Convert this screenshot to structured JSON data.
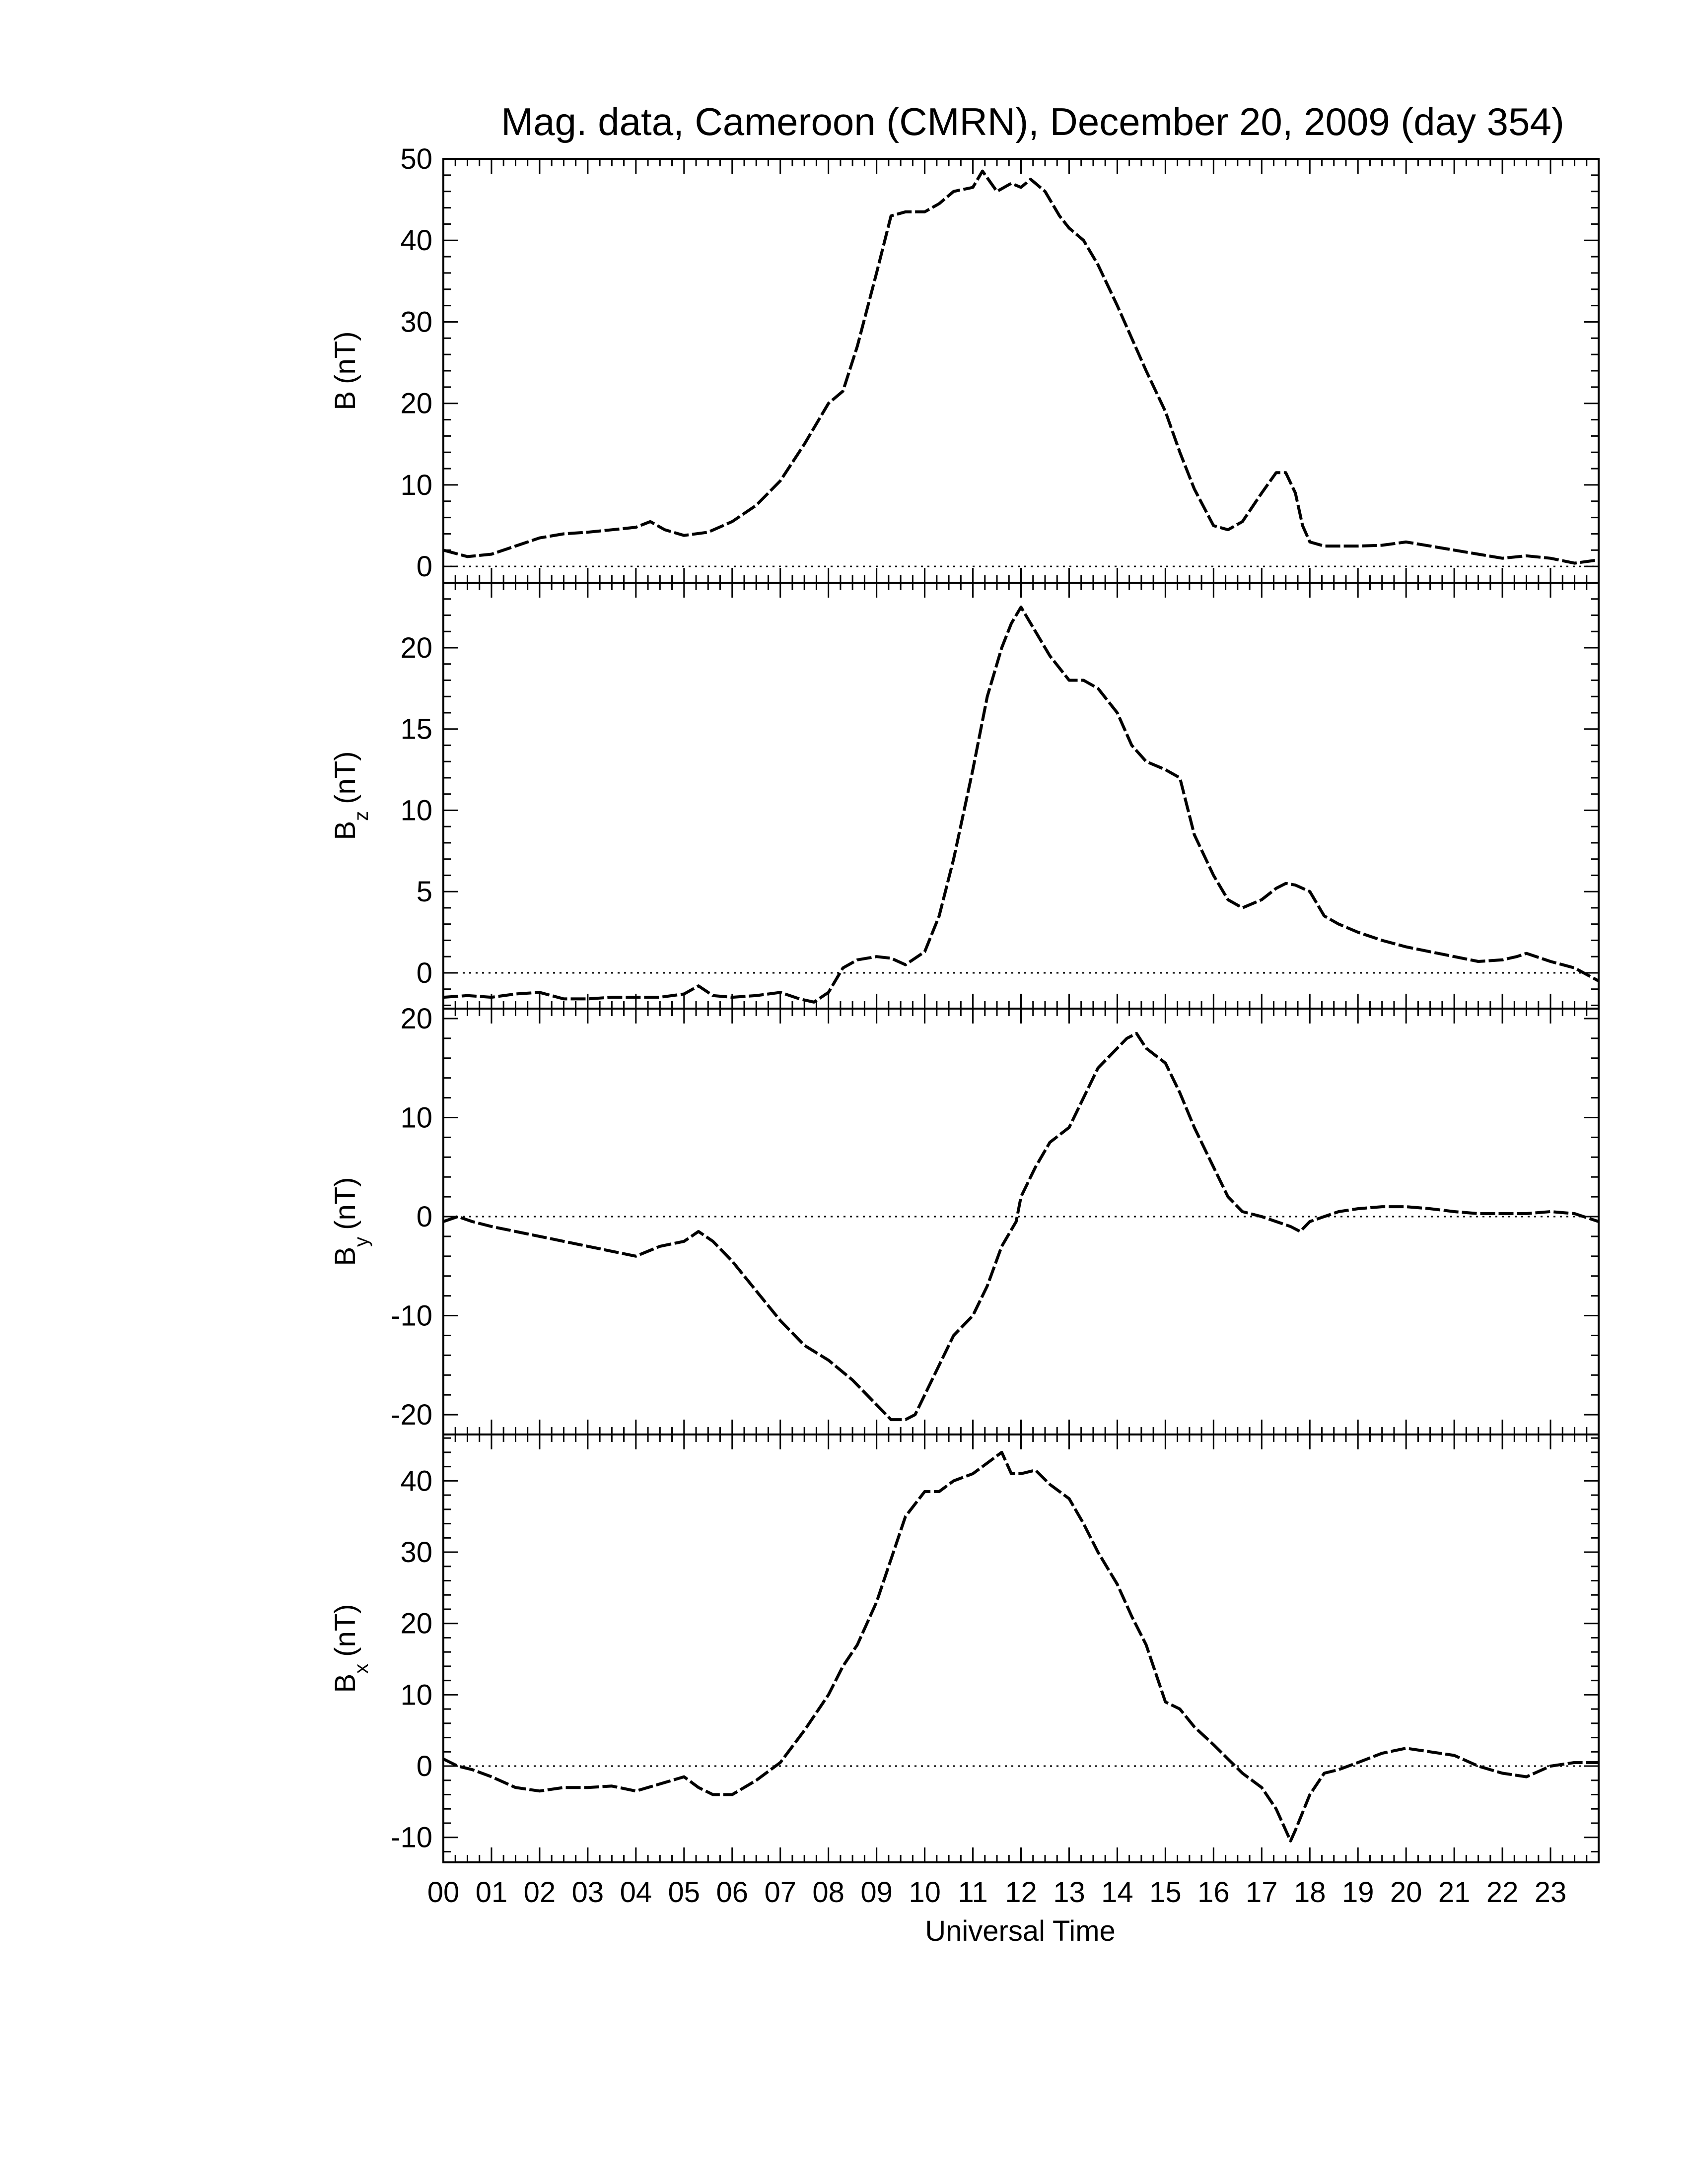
{
  "chart_data": {
    "type": "line",
    "title": "Mag. data, Cameroon (CMRN), December 20, 2009 (day 354)",
    "xlabel": "Universal Time",
    "xlim": [
      0,
      24
    ],
    "x_tick_labels": [
      "00",
      "01",
      "02",
      "03",
      "04",
      "05",
      "06",
      "07",
      "08",
      "09",
      "10",
      "11",
      "12",
      "13",
      "14",
      "15",
      "16",
      "17",
      "18",
      "19",
      "20",
      "21",
      "22",
      "23"
    ],
    "panels": [
      {
        "ylabel_main": "B",
        "ylabel_sub": "",
        "ylabel_unit": "(nT)",
        "ylim": [
          -2,
          50
        ],
        "yticks": [
          0,
          10,
          20,
          30,
          40,
          50
        ],
        "ytick_labels": [
          "0",
          "10",
          "20",
          "30",
          "40",
          "50"
        ],
        "series": [
          {
            "x": [
              0.0,
              0.5,
              1.0,
              1.5,
              2.0,
              2.5,
              3.0,
              3.5,
              4.0,
              4.3,
              4.6,
              5.0,
              5.5,
              6.0,
              6.5,
              7.0,
              7.5,
              8.0,
              8.3,
              8.6,
              9.0,
              9.3,
              9.6,
              10.0,
              10.3,
              10.6,
              11.0,
              11.2,
              11.5,
              11.8,
              12.0,
              12.2,
              12.5,
              12.8,
              13.0,
              13.3,
              13.6,
              14.0,
              14.3,
              14.6,
              15.0,
              15.3,
              15.6,
              16.0,
              16.3,
              16.6,
              17.0,
              17.3,
              17.5,
              17.7,
              17.85,
              18.0,
              18.3,
              18.6,
              19.0,
              19.5,
              20.0,
              20.5,
              21.0,
              21.5,
              22.0,
              22.5,
              23.0,
              23.5,
              24.0
            ],
            "values": [
              2,
              1.2,
              1.5,
              2.5,
              3.5,
              4,
              4.2,
              4.5,
              4.8,
              5.5,
              4.5,
              3.8,
              4.2,
              5.5,
              7.5,
              10.5,
              15,
              20,
              21.5,
              27,
              36,
              43,
              43.5,
              43.5,
              44.5,
              46,
              46.5,
              48.5,
              46,
              47,
              46.5,
              47.5,
              46,
              43,
              41.5,
              40,
              37,
              32,
              28,
              24,
              19,
              14,
              9.5,
              5,
              4.5,
              5.5,
              9,
              11.5,
              11.5,
              9,
              5,
              3,
              2.5,
              2.5,
              2.5,
              2.6,
              3,
              2.5,
              2,
              1.5,
              1,
              1.3,
              1,
              0.4,
              0.8
            ]
          }
        ]
      },
      {
        "ylabel_main": "B",
        "ylabel_sub": "z",
        "ylabel_unit": "(nT)",
        "ylim": [
          -2.2,
          24
        ],
        "yticks": [
          0,
          5,
          10,
          15,
          20
        ],
        "ytick_labels": [
          "0",
          "5",
          "10",
          "15",
          "20"
        ],
        "series": [
          {
            "x": [
              0.0,
              0.5,
              1.0,
              1.5,
              2.0,
              2.5,
              3.0,
              3.5,
              4.0,
              4.5,
              5.0,
              5.3,
              5.6,
              6.0,
              6.5,
              7.0,
              7.4,
              7.7,
              8.0,
              8.3,
              8.6,
              9.0,
              9.3,
              9.6,
              10.0,
              10.3,
              10.6,
              11.0,
              11.3,
              11.6,
              11.8,
              12.0,
              12.3,
              12.6,
              13.0,
              13.3,
              13.6,
              14.0,
              14.3,
              14.6,
              15.0,
              15.3,
              15.6,
              16.0,
              16.3,
              16.6,
              17.0,
              17.3,
              17.5,
              17.7,
              18.0,
              18.3,
              18.6,
              19.0,
              19.5,
              20.0,
              20.5,
              21.0,
              21.5,
              22.0,
              22.3,
              22.5,
              22.8,
              23.0,
              23.5,
              24.0
            ],
            "values": [
              -1.5,
              -1.4,
              -1.5,
              -1.3,
              -1.2,
              -1.6,
              -1.6,
              -1.5,
              -1.5,
              -1.5,
              -1.3,
              -0.8,
              -1.4,
              -1.5,
              -1.4,
              -1.2,
              -1.6,
              -1.8,
              -1.2,
              0.3,
              0.8,
              1.0,
              0.9,
              0.5,
              1.3,
              3.5,
              7,
              12.5,
              17,
              20,
              21.5,
              22.5,
              21,
              19.5,
              18,
              18,
              17.5,
              16,
              14,
              13,
              12.5,
              12,
              8.5,
              6,
              4.5,
              4,
              4.5,
              5.2,
              5.5,
              5.4,
              5,
              3.5,
              3,
              2.5,
              2,
              1.6,
              1.3,
              1,
              0.7,
              0.8,
              1,
              1.2,
              0.9,
              0.7,
              0.3,
              -0.5
            ]
          }
        ]
      },
      {
        "ylabel_main": "B",
        "ylabel_sub": "y",
        "ylabel_unit": "(nT)",
        "ylim": [
          -22,
          21
        ],
        "yticks": [
          -20,
          -10,
          0,
          10,
          20
        ],
        "ytick_labels": [
          "-20",
          "-10",
          "0",
          "10",
          "20"
        ],
        "series": [
          {
            "x": [
              0.0,
              0.3,
              0.6,
              1.0,
              1.5,
              2.0,
              2.5,
              3.0,
              3.5,
              4.0,
              4.5,
              5.0,
              5.3,
              5.6,
              6.0,
              6.5,
              7.0,
              7.5,
              8.0,
              8.5,
              9.0,
              9.3,
              9.6,
              9.8,
              10.0,
              10.3,
              10.6,
              11.0,
              11.3,
              11.6,
              11.9,
              12.0,
              12.3,
              12.6,
              13.0,
              13.3,
              13.6,
              14.0,
              14.2,
              14.4,
              14.6,
              15.0,
              15.3,
              15.6,
              16.0,
              16.3,
              16.6,
              17.0,
              17.3,
              17.6,
              17.8,
              18.0,
              18.3,
              18.6,
              19.0,
              19.5,
              20.0,
              20.5,
              21.0,
              21.5,
              22.0,
              22.5,
              23.0,
              23.5,
              24.0
            ],
            "values": [
              -0.5,
              0,
              -0.5,
              -1,
              -1.5,
              -2,
              -2.5,
              -3,
              -3.5,
              -4,
              -3,
              -2.5,
              -1.5,
              -2.5,
              -4.5,
              -7.5,
              -10.5,
              -13,
              -14.5,
              -16.5,
              -19,
              -20.5,
              -20.5,
              -20,
              -18,
              -15,
              -12,
              -10,
              -7,
              -3,
              -0.5,
              2,
              5,
              7.5,
              9,
              12,
              15,
              17,
              18,
              18.5,
              17,
              15.5,
              12.5,
              9,
              5,
              2,
              0.5,
              0,
              -0.5,
              -1,
              -1.5,
              -0.5,
              0,
              0.5,
              0.8,
              1,
              1,
              0.8,
              0.5,
              0.3,
              0.3,
              0.3,
              0.5,
              0.3,
              -0.5
            ]
          }
        ]
      },
      {
        "ylabel_main": "B",
        "ylabel_sub": "x",
        "ylabel_unit": "(nT)",
        "ylim": [
          -13.5,
          46.5
        ],
        "yticks": [
          -10,
          0,
          10,
          20,
          30,
          40
        ],
        "ytick_labels": [
          "-10",
          "0",
          "10",
          "20",
          "30",
          "40"
        ],
        "series": [
          {
            "x": [
              0.0,
              0.3,
              0.6,
              1.0,
              1.5,
              2.0,
              2.5,
              3.0,
              3.5,
              4.0,
              4.5,
              5.0,
              5.3,
              5.6,
              6.0,
              6.5,
              7.0,
              7.5,
              8.0,
              8.3,
              8.6,
              9.0,
              9.3,
              9.6,
              10.0,
              10.3,
              10.6,
              11.0,
              11.3,
              11.6,
              11.8,
              12.0,
              12.3,
              12.6,
              13.0,
              13.3,
              13.6,
              14.0,
              14.3,
              14.6,
              14.8,
              15.0,
              15.3,
              15.6,
              16.0,
              16.3,
              16.6,
              17.0,
              17.3,
              17.5,
              17.6,
              17.7,
              18.0,
              18.3,
              18.6,
              19.0,
              19.5,
              20.0,
              20.5,
              21.0,
              21.5,
              22.0,
              22.5,
              23.0,
              23.5,
              24.0
            ],
            "values": [
              1,
              0,
              -0.5,
              -1.5,
              -3,
              -3.5,
              -3,
              -3,
              -2.8,
              -3.5,
              -2.5,
              -1.5,
              -3,
              -4,
              -4,
              -2,
              0.5,
              5,
              10,
              14,
              17,
              23,
              29,
              35,
              38.5,
              38.5,
              40,
              41,
              42.5,
              44,
              41,
              41,
              41.5,
              39.5,
              37.5,
              34,
              30,
              25.5,
              21,
              17,
              13,
              9,
              8,
              5.5,
              3,
              1,
              -1,
              -3,
              -6,
              -9,
              -10.5,
              -9,
              -4,
              -1,
              -0.5,
              0.5,
              1.8,
              2.5,
              2,
              1.5,
              0,
              -1,
              -1.5,
              0,
              0.5,
              0.5
            ]
          }
        ]
      }
    ],
    "grid": false,
    "zero_reference_line": "dotted"
  }
}
